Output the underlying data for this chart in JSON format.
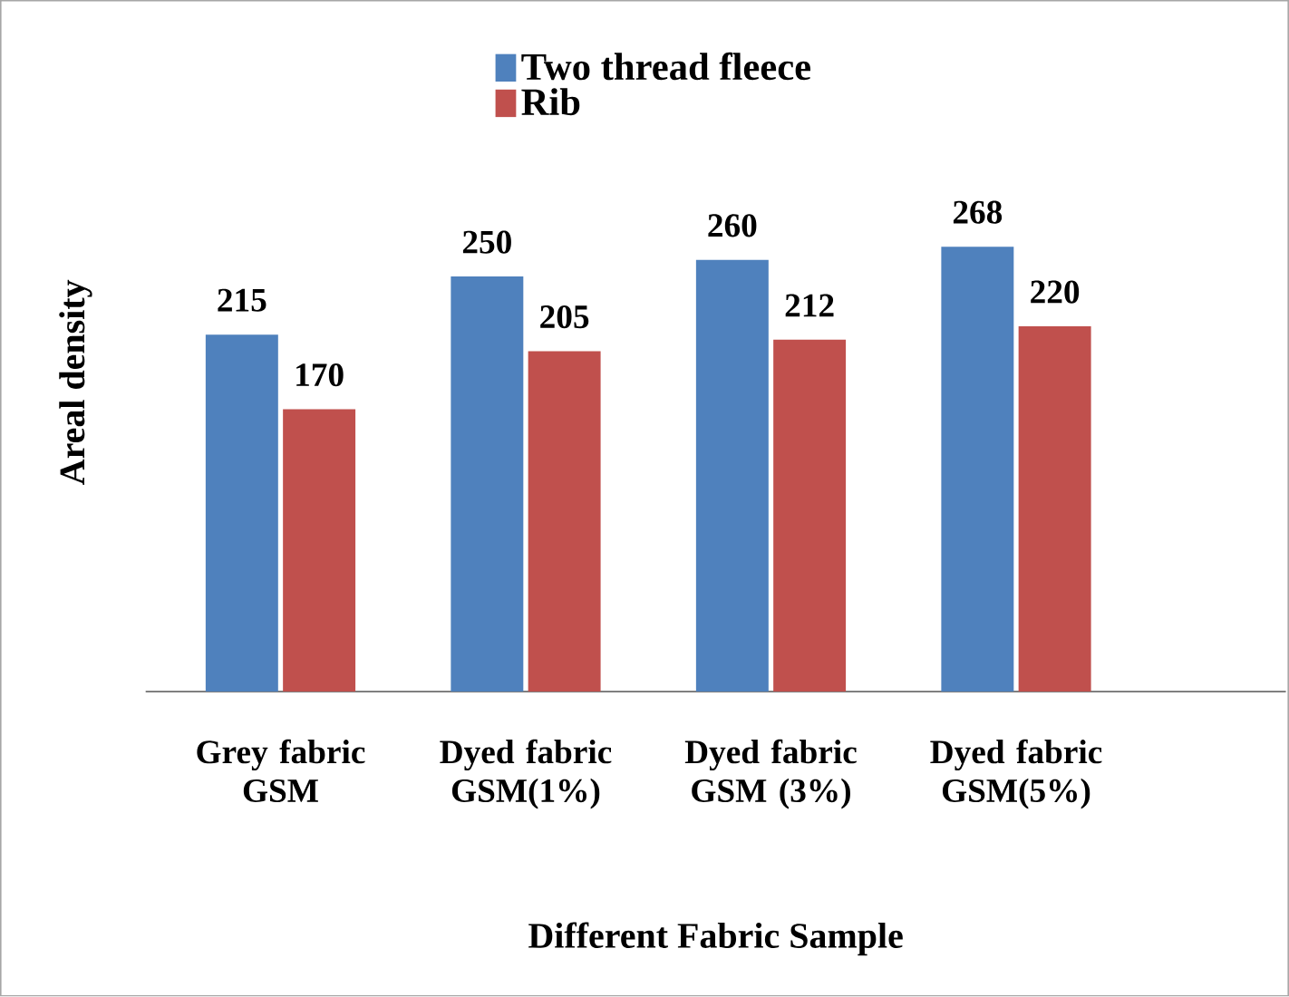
{
  "chart_data": {
    "type": "bar",
    "xlabel": "Different Fabric Sample",
    "ylabel": "Areal density",
    "categories": [
      "Grey fabric GSM",
      "Dyed fabric GSM(1%)",
      "Dyed fabric GSM (3%)",
      "Dyed fabric GSM(5%)"
    ],
    "series": [
      {
        "name": "Two thread fleece",
        "color": "#4f81bd",
        "values": [
          215,
          250,
          260,
          268
        ]
      },
      {
        "name": "Rib",
        "color": "#c0504d",
        "values": [
          170,
          205,
          212,
          220
        ]
      }
    ],
    "data_labels": true,
    "legend": "top",
    "grid": false
  }
}
